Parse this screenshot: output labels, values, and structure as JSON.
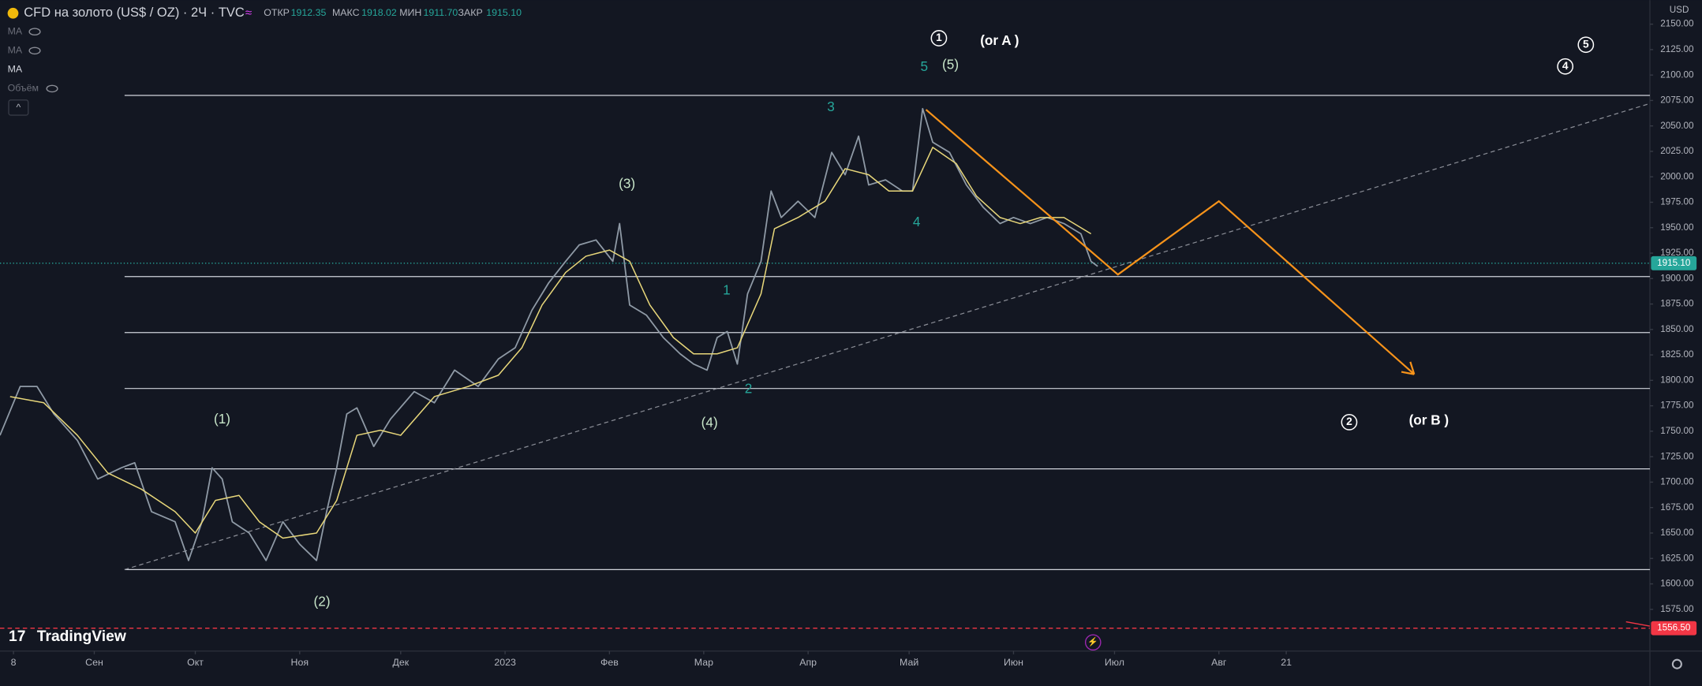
{
  "chart_data": {
    "type": "line",
    "title": "CFD на золото (US$ / OZ) · 2Ч · TVC",
    "ohlc": [
      {
        "name": "ОТКР",
        "value": "1912.35"
      },
      {
        "name": "МАКС",
        "value": "1918.02"
      },
      {
        "name": "МИН",
        "value": "1911.70"
      },
      {
        "name": "ЗАКР",
        "value": "1915.10"
      }
    ],
    "indicators": [
      "MA",
      "MA",
      "MA",
      "Объём"
    ],
    "currency": "USD",
    "logo": "TradingView",
    "xlim": [
      3,
      493
    ],
    "ylim": [
      1534,
      2173.5
    ],
    "xticks": [
      {
        "value": 7,
        "label": "8"
      },
      {
        "value": 31,
        "label": "Сен"
      },
      {
        "value": 61,
        "label": "Окт"
      },
      {
        "value": 92,
        "label": "Ноя"
      },
      {
        "value": 122,
        "label": "Дек"
      },
      {
        "value": 153,
        "label": "2023"
      },
      {
        "value": 184,
        "label": "Фев"
      },
      {
        "value": 212,
        "label": "Мар"
      },
      {
        "value": 243,
        "label": "Апр"
      },
      {
        "value": 273,
        "label": "Май"
      },
      {
        "value": 304,
        "label": "Июн"
      },
      {
        "value": 334,
        "label": "Июл"
      },
      {
        "value": 365,
        "label": "Авг"
      },
      {
        "value": 385,
        "label": "21"
      }
    ],
    "yticks": [
      {
        "value": 2150,
        "label": "2150.00"
      },
      {
        "value": 2125,
        "label": "2125.00"
      },
      {
        "value": 2100,
        "label": "2100.00"
      },
      {
        "value": 2075,
        "label": "2075.00"
      },
      {
        "value": 2050,
        "label": "2050.00"
      },
      {
        "value": 2025,
        "label": "2025.00"
      },
      {
        "value": 2000,
        "label": "2000.00"
      },
      {
        "value": 1975,
        "label": "1975.00"
      },
      {
        "value": 1950,
        "label": "1950.00"
      },
      {
        "value": 1925,
        "label": "1925.00"
      },
      {
        "value": 1900,
        "label": "1900.00"
      },
      {
        "value": 1875,
        "label": "1875.00"
      },
      {
        "value": 1850,
        "label": "1850.00"
      },
      {
        "value": 1825,
        "label": "1825.00"
      },
      {
        "value": 1800,
        "label": "1800.00"
      },
      {
        "value": 1775,
        "label": "1775.00"
      },
      {
        "value": 1750,
        "label": "1750.00"
      },
      {
        "value": 1725,
        "label": "1725.00"
      },
      {
        "value": 1700,
        "label": "1700.00"
      },
      {
        "value": 1675,
        "label": "1675.00"
      },
      {
        "value": 1650,
        "label": "1650.00"
      },
      {
        "value": 1625,
        "label": "1625.00"
      },
      {
        "value": 1600,
        "label": "1600.00"
      },
      {
        "value": 1575,
        "label": "1575.00"
      }
    ],
    "series": [
      {
        "color": "#8f9aa6",
        "x": [
          3,
          9,
          14,
          19,
          26,
          32,
          39,
          43,
          48,
          55,
          59,
          63,
          66,
          69,
          72,
          77,
          82,
          87,
          92,
          97,
          100,
          103,
          106,
          109,
          114,
          119,
          126,
          132,
          138,
          145,
          151,
          156,
          161,
          166,
          171,
          175,
          180,
          185,
          187,
          190,
          195,
          200,
          205,
          209,
          213,
          216,
          219,
          222,
          225,
          229,
          232,
          235,
          240,
          245,
          250,
          254,
          258,
          261,
          266,
          271,
          274,
          277,
          280,
          285,
          290,
          295,
          300,
          304,
          309,
          314,
          319,
          324,
          327,
          329
        ],
        "values": [
          1746,
          1794,
          1794,
          1767,
          1741,
          1703,
          1714,
          1719,
          1671,
          1661,
          1623,
          1661,
          1714,
          1703,
          1661,
          1650,
          1623,
          1661,
          1639,
          1623,
          1671,
          1714,
          1767,
          1773,
          1735,
          1762,
          1789,
          1778,
          1810,
          1794,
          1821,
          1832,
          1869,
          1896,
          1917,
          1933,
          1938,
          1917,
          1954,
          1874,
          1864,
          1842,
          1826,
          1816,
          1810,
          1842,
          1848,
          1816,
          1885,
          1917,
          1986,
          1960,
          1976,
          1960,
          2024,
          2002,
          2040,
          1992,
          1997,
          1986,
          1986,
          2067,
          2034,
          2024,
          1992,
          1970,
          1954,
          1960,
          1954,
          1960,
          1954,
          1944,
          1917,
          1912
        ]
      },
      {
        "color": "#e8d77a",
        "x": [
          6,
          16,
          26,
          35,
          45,
          55,
          61,
          67,
          74,
          80,
          87,
          97,
          103,
          109,
          116,
          122,
          132,
          142,
          151,
          158,
          164,
          171,
          177,
          184,
          190,
          196,
          203,
          209,
          216,
          222,
          229,
          233,
          240,
          248,
          254,
          261,
          267,
          274,
          280,
          287,
          293,
          300,
          306,
          312,
          319,
          327
        ],
        "values": [
          1784,
          1778,
          1746,
          1709,
          1693,
          1671,
          1650,
          1682,
          1687,
          1661,
          1645,
          1650,
          1682,
          1746,
          1751,
          1746,
          1784,
          1794,
          1805,
          1832,
          1874,
          1906,
          1922,
          1928,
          1917,
          1874,
          1842,
          1826,
          1826,
          1832,
          1885,
          1949,
          1960,
          1976,
          2008,
          2002,
          1986,
          1986,
          2029,
          2013,
          1981,
          1960,
          1954,
          1960,
          1960,
          1944
        ]
      }
    ],
    "levels": [
      2080,
      1902,
      1847,
      1792,
      1713,
      1614
    ],
    "level_start": 40,
    "trendline": {
      "x": [
        40,
        493
      ],
      "values": [
        1614,
        2072
      ]
    },
    "projection": {
      "x": [
        278,
        335,
        365,
        423
      ],
      "values": [
        2066,
        1904,
        1976,
        1806
      ],
      "color": "#f7931a"
    },
    "price_line": {
      "value": 1915.1,
      "label": "1915.10",
      "color": "#26a69a"
    },
    "alert_line": {
      "value": 1556.5,
      "label": "1556.50",
      "color": "#f23645"
    },
    "annotations": [
      {
        "text": "(1)",
        "color": "#c8e6c9"
      },
      {
        "text": "(2)",
        "color": "#c8e6c9"
      },
      {
        "text": "(3)",
        "color": "#c8e6c9"
      },
      {
        "text": "(4)",
        "color": "#c8e6c9"
      },
      {
        "text": "5",
        "color": "#26a69a"
      },
      {
        "text": "(5)",
        "color": "#c8e6c9"
      },
      {
        "text": "3",
        "color": "#26a69a"
      },
      {
        "text": "4",
        "color": "#26a69a"
      },
      {
        "text": "1",
        "color": "#26a69a"
      },
      {
        "text": "2",
        "color": "#26a69a"
      },
      {
        "text": "1",
        "color": "#ffffff",
        "circled": true
      },
      {
        "text": "(or A )",
        "color": "#ffffff"
      },
      {
        "text": "2",
        "color": "#ffffff",
        "circled": true
      },
      {
        "text": "(or B )",
        "color": "#ffffff"
      },
      {
        "text": "5",
        "color": "#ffffff",
        "circled": true
      },
      {
        "text": "4",
        "color": "#ffffff",
        "circled": true
      }
    ]
  }
}
